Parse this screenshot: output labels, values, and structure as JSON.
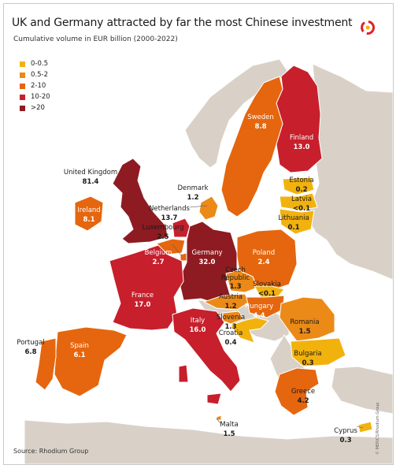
{
  "title": "UK and Germany attracted by far the most Chinese investment",
  "subtitle": "Cumulative volume in EUR billion (2000-2022)",
  "legend": [
    {
      "label": "0-0.5",
      "color": "#f2b20e"
    },
    {
      "label": "0.5-2",
      "color": "#ec8a17"
    },
    {
      "label": "2-10",
      "color": "#e5660e"
    },
    {
      "label": "10-20",
      "color": "#c71f2c"
    },
    {
      "label": ">20",
      "color": "#8e1b21"
    }
  ],
  "countries": [
    {
      "key": "uk",
      "name": "United Kingdom",
      "value": "81.4",
      "color": "#8e1b21"
    },
    {
      "key": "ireland",
      "name": "Ireland",
      "value": "8.1",
      "color": "#e5660e"
    },
    {
      "key": "denmark",
      "name": "Denmark",
      "value": "1.2",
      "color": "#ec8a17"
    },
    {
      "key": "netherlands",
      "name": "Netherlands",
      "value": "13.7",
      "color": "#c71f2c"
    },
    {
      "key": "luxembourg",
      "name": "Luxembourg",
      "value": "2.5",
      "color": "#e5660e"
    },
    {
      "key": "belgium",
      "name": "Belgium",
      "value": "2.7",
      "color": "#e5660e"
    },
    {
      "key": "germany",
      "name": "Germany",
      "value": "32.0",
      "color": "#8e1b21"
    },
    {
      "key": "poland",
      "name": "Poland",
      "value": "2.4",
      "color": "#e5660e"
    },
    {
      "key": "czech",
      "name": "Czech Republic",
      "value": "1.3",
      "color": "#ec8a17"
    },
    {
      "key": "slovakia",
      "name": "Slovakia",
      "value": "<0.1",
      "color": "#f2b20e"
    },
    {
      "key": "austria",
      "name": "Austria",
      "value": "1.2",
      "color": "#ec8a17"
    },
    {
      "key": "hungary",
      "name": "Hungary",
      "value": "4.4",
      "color": "#e5660e"
    },
    {
      "key": "slovenia",
      "name": "Slovenia",
      "value": "1.3",
      "color": "#ec8a17"
    },
    {
      "key": "croatia",
      "name": "Croatia",
      "value": "0.4",
      "color": "#f2b20e"
    },
    {
      "key": "france",
      "name": "France",
      "value": "17.0",
      "color": "#c71f2c"
    },
    {
      "key": "italy",
      "name": "Italy",
      "value": "16.0",
      "color": "#c71f2c"
    },
    {
      "key": "spain",
      "name": "Spain",
      "value": "6.1",
      "color": "#e5660e"
    },
    {
      "key": "portugal",
      "name": "Portugal",
      "value": "6.8",
      "color": "#e5660e"
    },
    {
      "key": "sweden",
      "name": "Sweden",
      "value": "8.8",
      "color": "#e5660e"
    },
    {
      "key": "finland",
      "name": "Finland",
      "value": "13.0",
      "color": "#c71f2c"
    },
    {
      "key": "estonia",
      "name": "Estonia",
      "value": "0.2",
      "color": "#f2b20e"
    },
    {
      "key": "latvia",
      "name": "Latvia",
      "value": "<0.1",
      "color": "#f2b20e"
    },
    {
      "key": "lithuania",
      "name": "Lithuania",
      "value": "0.1",
      "color": "#f2b20e"
    },
    {
      "key": "romania",
      "name": "Romania",
      "value": "1.5",
      "color": "#ec8a17"
    },
    {
      "key": "bulgaria",
      "name": "Bulgaria",
      "value": "0.3",
      "color": "#f2b20e"
    },
    {
      "key": "greece",
      "name": "Greece",
      "value": "4.2",
      "color": "#e5660e"
    },
    {
      "key": "malta",
      "name": "Malta",
      "value": "1.5",
      "color": "#ec8a17"
    },
    {
      "key": "cyprus",
      "name": "Cyprus",
      "value": "0.3",
      "color": "#f2b20e"
    }
  ],
  "land_color": "#d9d1c7",
  "sea_color": "#ffffff",
  "source": "Source: Rhodium Group",
  "credit": "© MERICS/Rhodium Group",
  "logo_icon": "merics-logo-icon"
}
